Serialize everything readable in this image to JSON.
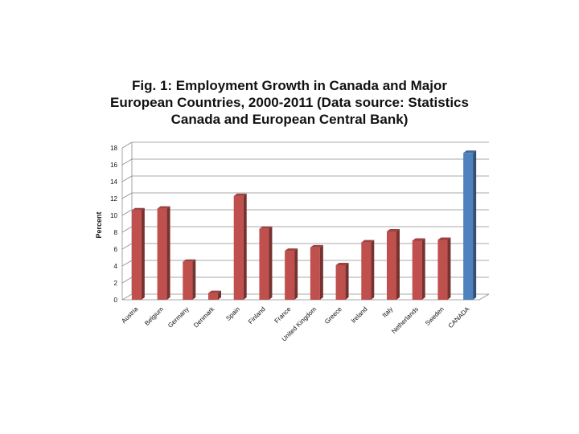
{
  "chart_data": {
    "type": "bar",
    "title_lines": [
      "Fig. 1: Employment Growth in Canada and Major",
      "European Countries, 2000-2011 (Data source: Statistics",
      "Canada and European Central Bank)"
    ],
    "xlabel": "",
    "ylabel": "Percent",
    "ylim": [
      0,
      18
    ],
    "yticks": [
      "0",
      "2",
      "4",
      "6",
      "8",
      "10",
      "12",
      "14",
      "16",
      "18"
    ],
    "grid": true,
    "categories": [
      "Austria",
      "Belgium",
      "Germany",
      "Denmark",
      "Spain",
      "Finland",
      "France",
      "United Kingdom",
      "Greece",
      "Ireland",
      "Italy",
      "Netherlands",
      "Sweden",
      "CANADA"
    ],
    "values": [
      10.6,
      10.8,
      4.5,
      0.8,
      12.3,
      8.4,
      5.8,
      6.2,
      4.1,
      6.8,
      8.1,
      7.0,
      7.1,
      17.4
    ],
    "colors": {
      "europe": "#c0504d",
      "canada": "#4f81bd"
    }
  }
}
